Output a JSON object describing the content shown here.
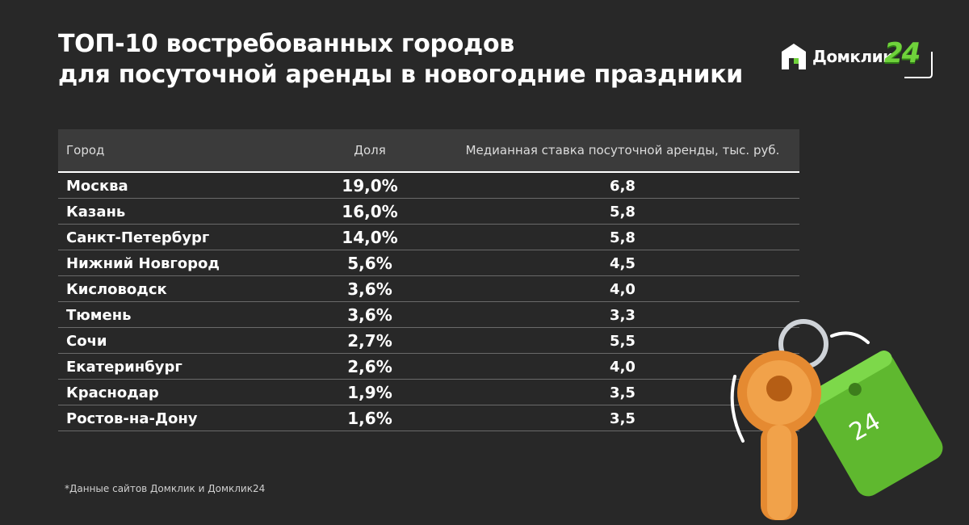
{
  "title": {
    "line1": "ТОП-10 востребованных городов",
    "line2": "для посуточной аренды в новогодние праздники"
  },
  "logo": {
    "text": "Домклик",
    "suffix": "24"
  },
  "colors": {
    "background": "#282828",
    "brand_green": "#6fd23b",
    "key": "#e8913a"
  },
  "chart_data": {
    "type": "table",
    "columns": [
      "Город",
      "Доля",
      "Медианная ставка посуточной аренды, тыс. руб."
    ],
    "rows": [
      {
        "city": "Москва",
        "share": "19,0%",
        "rate": "6,8"
      },
      {
        "city": "Казань",
        "share": "16,0%",
        "rate": "5,8"
      },
      {
        "city": "Санкт-Петербург",
        "share": "14,0%",
        "rate": "5,8"
      },
      {
        "city": "Нижний Новгород",
        "share": "5,6%",
        "rate": "4,5"
      },
      {
        "city": "Кисловодск",
        "share": "3,6%",
        "rate": "4,0"
      },
      {
        "city": "Тюмень",
        "share": "3,6%",
        "rate": "3,3"
      },
      {
        "city": "Сочи",
        "share": "2,7%",
        "rate": "5,5"
      },
      {
        "city": "Екатеринбург",
        "share": "2,6%",
        "rate": "4,0"
      },
      {
        "city": "Краснодар",
        "share": "1,9%",
        "rate": "3,5"
      },
      {
        "city": "Ростов-на-Дону",
        "share": "1,6%",
        "rate": "3,5"
      }
    ]
  },
  "footnote": "*Данные сайтов Домклик и Домклик24",
  "illustration": {
    "tag_label": "24",
    "icon": "key-with-tag-icon"
  }
}
